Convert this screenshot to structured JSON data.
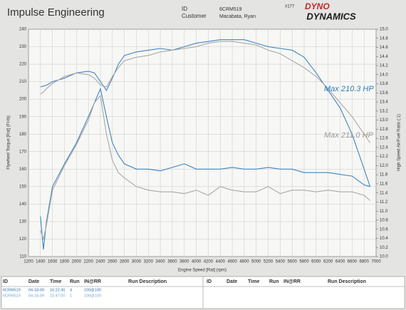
{
  "header": {
    "company": "Impulse Engineering",
    "id_label": "ID",
    "id": "6CRM519",
    "customer_label": "Customer",
    "customer": "Macabata, Ryan",
    "number": "#177",
    "logo_top": "DYNO",
    "logo_bottom": "DYNAMICS"
  },
  "chart_data": {
    "type": "line",
    "y_label": "Flywheel Torque [Rat] (Ft-lb)",
    "y2_label": "High Speed Air/Fuel Ratio (:1)",
    "x_label": "Engine Speed [Rat] (rpm)",
    "annotations": [
      {
        "text": "Max 210.3 HP",
        "color": "#2f7fc0"
      },
      {
        "text": "Max 211.0 HP",
        "color": "#9a9a9a"
      }
    ],
    "grid": true,
    "x": [
      1400,
      1450,
      1500,
      1600,
      1800,
      2000,
      2200,
      2300,
      2400,
      2500,
      2600,
      2700,
      2800,
      3000,
      3200,
      3400,
      3600,
      3800,
      4000,
      4200,
      4400,
      4600,
      4800,
      5000,
      5200,
      5400,
      5600,
      5800,
      6000,
      6200,
      6400,
      6600,
      6800,
      6900
    ],
    "series": [
      {
        "color": "#3f85c2",
        "values": [
          207,
          207.5,
          208,
          210,
          212,
          215,
          216,
          215,
          210,
          205,
          212,
          220,
          225,
          227,
          228,
          229,
          228,
          230,
          232,
          233,
          234,
          234,
          234,
          232,
          230,
          229,
          228,
          224,
          215,
          205,
          195,
          180,
          160,
          150
        ]
      },
      {
        "color": "#a8a8a8",
        "values": [
          203,
          204,
          206,
          209,
          213,
          215,
          214,
          212,
          208,
          207,
          213,
          218,
          222,
          224,
          225,
          227,
          228,
          229,
          230,
          232,
          233,
          233,
          232,
          231,
          228,
          226,
          222,
          218,
          213,
          206,
          198,
          190,
          180,
          175
        ]
      },
      {
        "color": "#3f85c2",
        "values": [
          133,
          114,
          130,
          150,
          163,
          175,
          190,
          198,
          206,
          190,
          175,
          168,
          163,
          160,
          160,
          159,
          161,
          163,
          160,
          160,
          160,
          161,
          160,
          160,
          161,
          160,
          160,
          158,
          158,
          158,
          157,
          156,
          151,
          150
        ]
      },
      {
        "color": "#a8a8a8",
        "values": [
          125,
          120,
          128,
          148,
          162,
          174,
          188,
          198,
          202,
          180,
          165,
          158,
          155,
          150,
          148,
          147,
          147,
          146,
          148,
          145,
          150,
          148,
          147,
          147,
          150,
          146,
          148,
          148,
          147,
          148,
          147,
          147,
          145,
          142
        ]
      }
    ],
    "xlim": [
      1200,
      7000
    ],
    "xticks": [
      1200,
      1400,
      1600,
      1800,
      2000,
      2200,
      2400,
      2600,
      2800,
      3000,
      3200,
      3400,
      3600,
      3800,
      4000,
      4200,
      4400,
      4600,
      4800,
      5000,
      5200,
      5400,
      5600,
      5800,
      6000,
      6200,
      6400,
      6600,
      6800,
      7000
    ],
    "ylim": [
      110,
      240
    ],
    "yticks": [
      110,
      120,
      130,
      140,
      150,
      160,
      170,
      180,
      190,
      200,
      210,
      220,
      230,
      240
    ],
    "y2lim": [
      10,
      15
    ],
    "y2ticks": [
      {
        "value": 10,
        "label": "10.0"
      },
      {
        "value": 10.2,
        "label": "10.2"
      },
      {
        "value": 10.4,
        "label": "10.4"
      },
      {
        "value": 10.6,
        "label": "10.6"
      },
      {
        "value": 10.8,
        "label": "10.8"
      },
      {
        "value": 11,
        "label": "11.0"
      },
      {
        "value": 11.2,
        "label": "11.2"
      },
      {
        "value": 11.4,
        "label": "11.4"
      },
      {
        "value": 11.6,
        "label": "11.6"
      },
      {
        "value": 11.8,
        "label": "11.8"
      },
      {
        "value": 12,
        "label": "12.0"
      },
      {
        "value": 12.2,
        "label": "12.2"
      },
      {
        "value": 12.4,
        "label": "12.4"
      },
      {
        "value": 12.6,
        "label": "12.6"
      },
      {
        "value": 12.8,
        "label": "12.8"
      },
      {
        "value": 13,
        "label": "13.0"
      },
      {
        "value": 13.2,
        "label": "13.2"
      },
      {
        "value": 13.4,
        "label": "13.4"
      },
      {
        "value": 13.6,
        "label": "13.6"
      },
      {
        "value": 13.8,
        "label": "13.8"
      },
      {
        "value": 14,
        "label": "14.0"
      },
      {
        "value": 14.2,
        "label": "14.2"
      },
      {
        "value": 14.4,
        "label": "14.4"
      },
      {
        "value": 14.6,
        "label": "14.6"
      },
      {
        "value": 14.8,
        "label": "14.8"
      },
      {
        "value": 15,
        "label": "15.0"
      }
    ]
  },
  "table": {
    "headers": [
      "ID",
      "Date",
      "Time",
      "Run",
      "IN@RR",
      "Run Description",
      "ID",
      "Date",
      "Time",
      "Run",
      "IN@RR",
      "Run Description"
    ],
    "rows": [
      [
        "6CRM519",
        "04-18-09",
        "16:22:40",
        "4",
        "100@100"
      ],
      [
        "6CRM519",
        "04-18-09",
        "15:47:00",
        "1",
        "100@100"
      ]
    ]
  }
}
